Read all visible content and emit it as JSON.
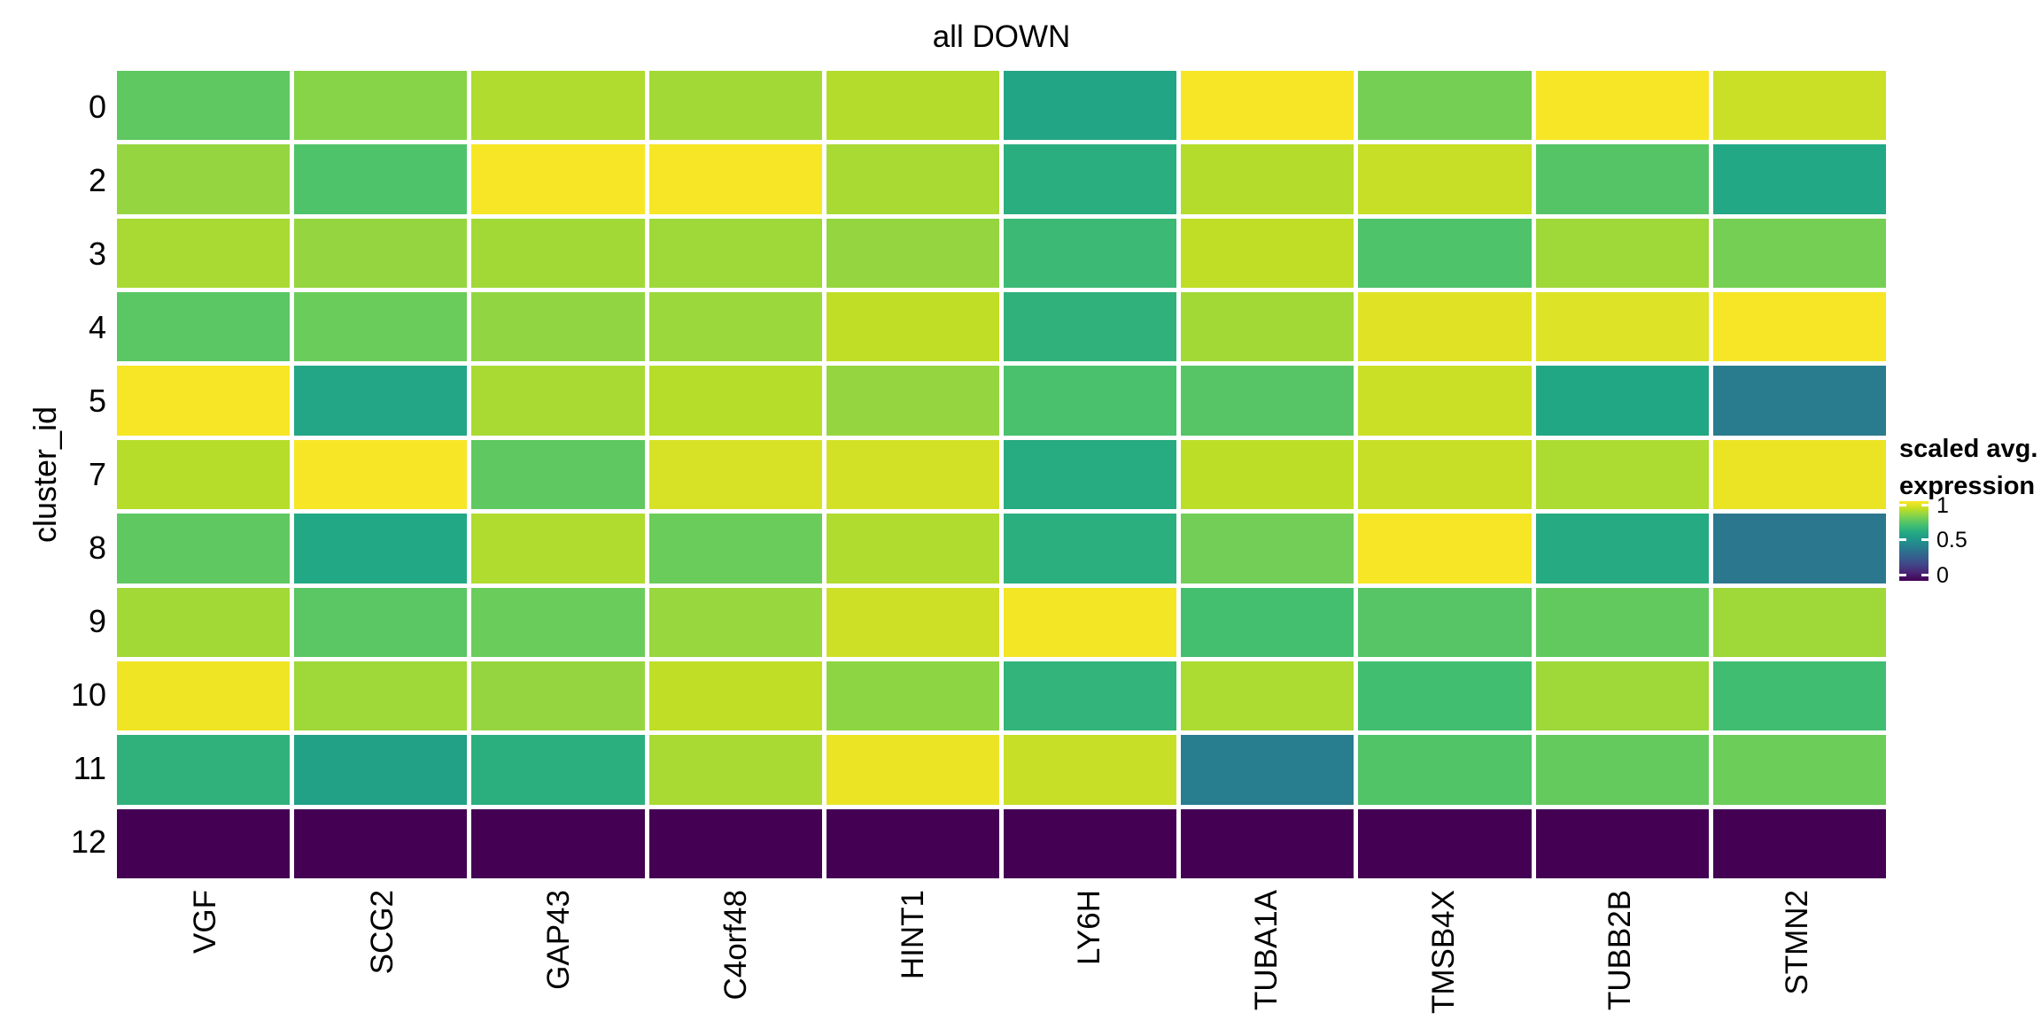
{
  "page": {
    "background": "#ffffff",
    "text_color": "#000000"
  },
  "chart_data": {
    "type": "heatmap",
    "title": "all DOWN",
    "x_axis": {
      "label": "",
      "categories": [
        "VGF",
        "SCG2",
        "GAP43",
        "C4orf48",
        "HINT1",
        "LY6H",
        "TUBA1A",
        "TMSB4X",
        "TUBB2B",
        "STMN2"
      ]
    },
    "y_axis": {
      "label": "cluster_id",
      "categories": [
        "0",
        "2",
        "3",
        "4",
        "5",
        "7",
        "8",
        "9",
        "10",
        "11",
        "12"
      ]
    },
    "values": [
      [
        0.75,
        0.82,
        0.88,
        0.86,
        0.885,
        0.585,
        0.99,
        0.79,
        0.99,
        0.92
      ],
      [
        0.84,
        0.72,
        0.99,
        0.99,
        0.87,
        0.625,
        0.885,
        0.915,
        0.73,
        0.6
      ],
      [
        0.87,
        0.84,
        0.86,
        0.855,
        0.84,
        0.675,
        0.905,
        0.72,
        0.855,
        0.79
      ],
      [
        0.74,
        0.77,
        0.835,
        0.85,
        0.905,
        0.64,
        0.86,
        0.955,
        0.95,
        0.99
      ],
      [
        0.99,
        0.59,
        0.87,
        0.89,
        0.84,
        0.71,
        0.735,
        0.92,
        0.595,
        0.415
      ],
      [
        0.89,
        0.99,
        0.75,
        0.94,
        0.935,
        0.615,
        0.9,
        0.915,
        0.875,
        0.97
      ],
      [
        0.75,
        0.6,
        0.88,
        0.77,
        0.88,
        0.63,
        0.785,
        0.99,
        0.61,
        0.395
      ],
      [
        0.86,
        0.74,
        0.77,
        0.845,
        0.925,
        0.985,
        0.7,
        0.735,
        0.755,
        0.855
      ],
      [
        0.98,
        0.855,
        0.84,
        0.905,
        0.83,
        0.65,
        0.875,
        0.695,
        0.855,
        0.69
      ],
      [
        0.64,
        0.57,
        0.63,
        0.87,
        0.97,
        0.915,
        0.42,
        0.725,
        0.76,
        0.775
      ],
      [
        0.0,
        0.0,
        0.0,
        0.0,
        0.0,
        0.0,
        0.0,
        0.0,
        0.0,
        0.0
      ]
    ],
    "value_range": [
      0,
      1
    ],
    "legend": {
      "title_lines": [
        "scaled avg.",
        "expression"
      ],
      "tick_labels": [
        "1",
        "0.5",
        "0"
      ],
      "tick_values": [
        1,
        0.5,
        0
      ],
      "position": "right"
    },
    "colormap": {
      "name": "viridis",
      "stops": [
        [
          0.0,
          "#440154"
        ],
        [
          0.1,
          "#482475"
        ],
        [
          0.2,
          "#414487"
        ],
        [
          0.3,
          "#355F8D"
        ],
        [
          0.4,
          "#2A788E"
        ],
        [
          0.5,
          "#21918C"
        ],
        [
          0.6,
          "#22A884"
        ],
        [
          0.7,
          "#44BF70"
        ],
        [
          0.8,
          "#7AD151"
        ],
        [
          0.9,
          "#BDDE26"
        ],
        [
          1.0,
          "#FDE725"
        ]
      ]
    },
    "grid_line_color": "#FFFFFF"
  }
}
